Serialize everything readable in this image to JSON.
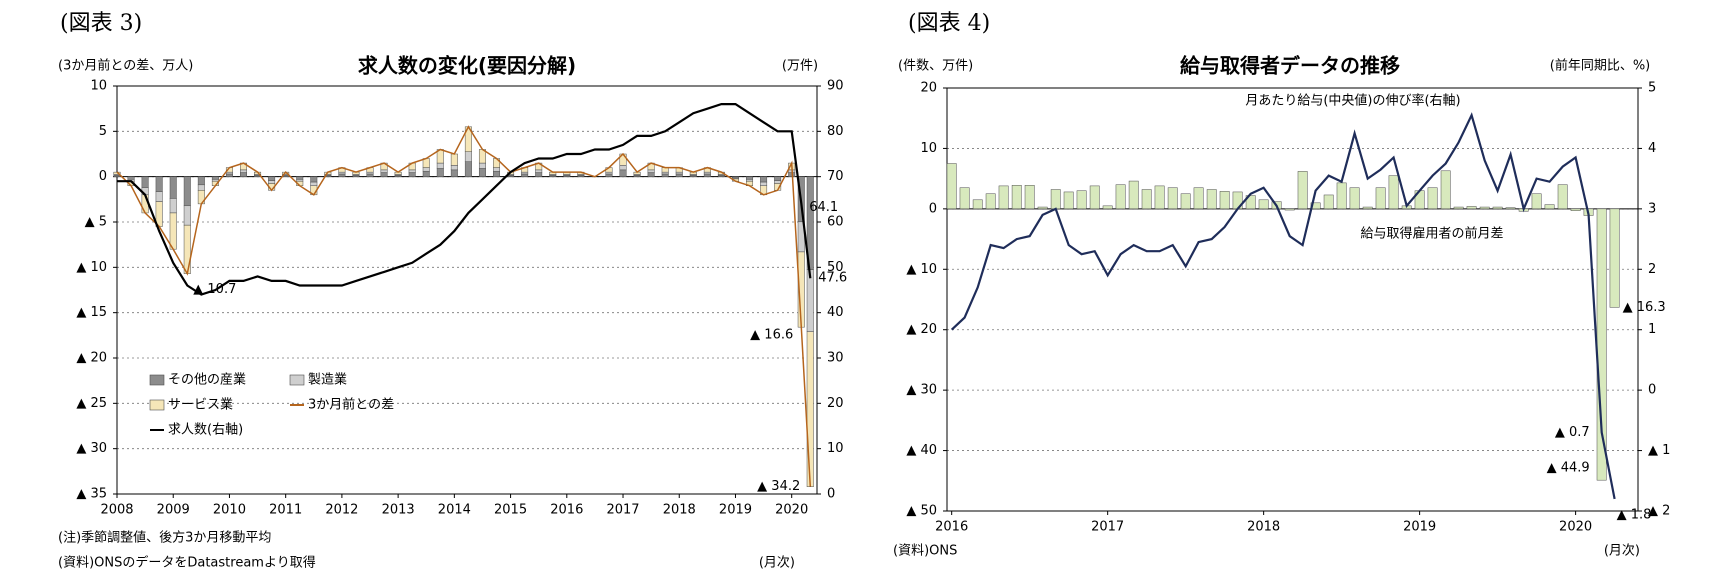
{
  "chart_data": [
    {
      "type": "combo",
      "figure_label": "(図表 3)",
      "title": "求人数の変化(要因分解)",
      "y_label": "(3か月前との差、万人)",
      "y2_label": "(万件)",
      "x_unit": "(月次)",
      "notes": [
        "(注)季節調整値、後方3か月移動平均",
        "(資料)ONSのデータをDatastreamより取得"
      ],
      "stacked": true,
      "grid": true,
      "legend": "lower left",
      "x": [
        2008,
        2008.25,
        2008.5,
        2008.75,
        2009,
        2009.25,
        2009.5,
        2009.75,
        2010,
        2010.25,
        2010.5,
        2010.75,
        2011,
        2011.25,
        2011.5,
        2011.75,
        2012,
        2012.25,
        2012.5,
        2012.75,
        2013,
        2013.25,
        2013.5,
        2013.75,
        2014,
        2014.25,
        2014.5,
        2014.75,
        2015,
        2015.25,
        2015.5,
        2015.75,
        2016,
        2016.25,
        2016.5,
        2016.75,
        2017,
        2017.25,
        2017.5,
        2017.75,
        2018,
        2018.25,
        2018.5,
        2018.75,
        2019,
        2019.25,
        2019.5,
        2019.75,
        2020,
        2020.17,
        2020.33
      ],
      "xlim": [
        2008,
        2020.45
      ],
      "xticks": [
        2008,
        2009,
        2010,
        2011,
        2012,
        2013,
        2014,
        2015,
        2016,
        2017,
        2018,
        2019,
        2020
      ],
      "ylim": [
        -35,
        10
      ],
      "yticks": [
        10,
        5,
        0,
        {
          "value": -5,
          "label": "▲ 5"
        },
        {
          "value": -10,
          "label": "▲ 10"
        },
        {
          "value": -15,
          "label": "▲ 15"
        },
        {
          "value": -20,
          "label": "▲ 20"
        },
        {
          "value": -25,
          "label": "▲ 25"
        },
        {
          "value": -30,
          "label": "▲ 30"
        },
        {
          "value": -35,
          "label": "▲ 35"
        }
      ],
      "y2lim": [
        0,
        90
      ],
      "y2ticks": [
        0,
        10,
        20,
        30,
        40,
        50,
        60,
        70,
        80,
        90
      ],
      "series": [
        {
          "name": "その他の産業",
          "type": "bar",
          "color": "#8c8c8c",
          "values": [
            0.15,
            -0.3,
            -1.2,
            -1.65,
            -2.4,
            -3.21,
            -0.9,
            -0.3,
            0.3,
            0.45,
            0.15,
            -0.45,
            0.15,
            -0.3,
            -0.6,
            0.15,
            0.3,
            0.15,
            0.3,
            0.45,
            0.15,
            0.45,
            0.6,
            0.9,
            0.75,
            1.65,
            0.9,
            0.6,
            0.15,
            0.3,
            0.45,
            0.15,
            0.15,
            0.15,
            0,
            0.3,
            0.75,
            0.15,
            0.45,
            0.3,
            0.3,
            0.15,
            0.3,
            0.15,
            -0.15,
            -0.3,
            -0.6,
            -0.45,
            0.45,
            -4.98,
            -10.26
          ]
        },
        {
          "name": "製造業",
          "type": "bar",
          "color": "#cfcfcf",
          "values": [
            0.1,
            -0.2,
            -0.8,
            -1.1,
            -1.6,
            -2.14,
            -0.6,
            -0.2,
            0.2,
            0.3,
            0.1,
            -0.3,
            0.1,
            -0.2,
            -0.4,
            0.1,
            0.2,
            0.1,
            0.2,
            0.3,
            0.1,
            0.3,
            0.4,
            0.6,
            0.5,
            1.1,
            0.6,
            0.4,
            0.1,
            0.2,
            0.3,
            0.1,
            0.1,
            0.1,
            0,
            0.2,
            0.5,
            0.1,
            0.3,
            0.2,
            0.2,
            0.1,
            0.2,
            0.1,
            -0.1,
            -0.2,
            -0.4,
            -0.3,
            0.3,
            -3.32,
            -6.84
          ]
        },
        {
          "name": "サービス業",
          "type": "bar",
          "color": "#f5e6b8",
          "values": [
            0.25,
            -0.5,
            -2,
            -2.75,
            -4,
            -5.35,
            -1.5,
            -0.5,
            0.5,
            0.75,
            0.25,
            -0.75,
            0.25,
            -0.5,
            -1,
            0.25,
            0.5,
            0.25,
            0.5,
            0.75,
            0.25,
            0.75,
            1,
            1.5,
            1.25,
            2.75,
            1.5,
            1,
            0.25,
            0.5,
            0.75,
            0.25,
            0.25,
            0.25,
            0,
            0.5,
            1.25,
            0.25,
            0.75,
            0.5,
            0.5,
            0.25,
            0.5,
            0.25,
            -0.25,
            -0.5,
            -1,
            -0.75,
            0.75,
            -8.3,
            -17.1
          ]
        },
        {
          "name": "3か月前との差",
          "type": "line",
          "color": "#b5651d",
          "values": [
            0.5,
            -1,
            -4,
            -5.5,
            -8,
            -10.7,
            -3,
            -1,
            1,
            1.5,
            0.5,
            -1.5,
            0.5,
            -1,
            -2,
            0.5,
            1,
            0.5,
            1,
            1.5,
            0.5,
            1.5,
            2,
            3,
            2.5,
            5.5,
            3,
            2,
            0.5,
            1,
            1.5,
            0.5,
            0.5,
            0.5,
            0,
            1,
            2.5,
            0.5,
            1.5,
            1,
            1,
            0.5,
            1,
            0.5,
            -0.5,
            -1,
            -2,
            -1.5,
            1.5,
            -16.6,
            -34.2
          ],
          "value_labels": [
            null,
            null,
            null,
            null,
            null,
            "▲ 10.7",
            null,
            null,
            null,
            null,
            null,
            null,
            null,
            null,
            null,
            null,
            null,
            null,
            null,
            null,
            null,
            null,
            null,
            null,
            null,
            null,
            null,
            null,
            null,
            null,
            null,
            null,
            null,
            null,
            null,
            null,
            null,
            null,
            null,
            null,
            null,
            null,
            null,
            null,
            null,
            null,
            null,
            null,
            null,
            "▲ 16.6",
            "▲ 34.2"
          ]
        },
        {
          "name": "求人数(右軸)",
          "type": "line",
          "axis": "y2",
          "color": "#000000",
          "values": [
            69,
            69,
            66,
            58,
            51,
            46,
            44,
            45,
            47,
            47,
            48,
            47,
            47,
            46,
            46,
            46,
            46,
            47,
            48,
            49,
            50,
            51,
            53,
            55,
            58,
            62,
            65,
            68,
            71,
            73,
            74,
            74,
            75,
            75,
            76,
            76,
            77,
            79,
            79,
            80,
            82,
            84,
            85,
            86,
            86,
            84,
            82,
            80,
            80,
            64.1,
            47.6
          ],
          "value_labels": [
            null,
            null,
            null,
            null,
            null,
            null,
            null,
            null,
            null,
            null,
            null,
            null,
            null,
            null,
            null,
            null,
            null,
            null,
            null,
            null,
            null,
            null,
            null,
            null,
            null,
            null,
            null,
            null,
            null,
            null,
            null,
            null,
            null,
            null,
            null,
            null,
            null,
            null,
            null,
            null,
            null,
            null,
            null,
            null,
            null,
            null,
            null,
            null,
            null,
            "64.1",
            "47.6"
          ]
        }
      ]
    },
    {
      "type": "combo",
      "figure_label": "(図表 4)",
      "title": "給与取得者データの推移",
      "y_label": "(件数、万件)",
      "y2_label": "(前年同期比、%)",
      "x_unit": "(月次)",
      "notes": [
        "(資料)ONS"
      ],
      "stacked": false,
      "grid": true,
      "x": [
        2016,
        2016.083,
        2016.167,
        2016.25,
        2016.333,
        2016.417,
        2016.5,
        2016.583,
        2016.667,
        2016.75,
        2016.833,
        2016.917,
        2017,
        2017.083,
        2017.167,
        2017.25,
        2017.333,
        2017.417,
        2017.5,
        2017.583,
        2017.667,
        2017.75,
        2017.833,
        2017.917,
        2018,
        2018.083,
        2018.167,
        2018.25,
        2018.333,
        2018.417,
        2018.5,
        2018.583,
        2018.667,
        2018.75,
        2018.833,
        2018.917,
        2019,
        2019.083,
        2019.167,
        2019.25,
        2019.333,
        2019.417,
        2019.5,
        2019.583,
        2019.667,
        2019.75,
        2019.833,
        2019.917,
        2020,
        2020.083,
        2020.167,
        2020.25
      ],
      "xlim": [
        2015.97,
        2020.4
      ],
      "xticks": [
        2016,
        2017,
        2018,
        2019,
        2020
      ],
      "ylim": [
        -50,
        20
      ],
      "yticks": [
        20,
        10,
        0,
        {
          "value": -10,
          "label": "▲ 10"
        },
        {
          "value": -20,
          "label": "▲ 20"
        },
        {
          "value": -30,
          "label": "▲ 30"
        },
        {
          "value": -40,
          "label": "▲ 40"
        },
        {
          "value": -50,
          "label": "▲ 50"
        }
      ],
      "y2lim": [
        -2,
        5
      ],
      "y2ticks": [
        5,
        4,
        3,
        2,
        1,
        0,
        {
          "value": -1,
          "label": "▲ 1"
        },
        {
          "value": -2,
          "label": "▲ 2"
        }
      ],
      "series": [
        {
          "name": "給与取得雇用者の前月差",
          "type": "bar",
          "color": "#d8e9bd",
          "values": [
            7.5,
            3.5,
            1.5,
            2.5,
            3.8,
            3.9,
            3.9,
            0.3,
            3.2,
            2.8,
            3.0,
            3.8,
            0.5,
            4.0,
            4.6,
            3.2,
            3.8,
            3.5,
            2.5,
            3.5,
            3.2,
            2.9,
            2.8,
            2.2,
            1.5,
            1.2,
            -0.2,
            6.2,
            1.0,
            2.3,
            4.3,
            3.5,
            0.3,
            3.5,
            5.5,
            0.5,
            3.0,
            3.5,
            6.3,
            0.3,
            0.4,
            0.3,
            0.3,
            0.2,
            -0.4,
            2.5,
            0.7,
            4.0,
            -0.3,
            -1.1,
            -44.9,
            -16.3
          ],
          "value_labels": [
            null,
            null,
            null,
            null,
            null,
            null,
            null,
            null,
            null,
            null,
            null,
            null,
            null,
            null,
            null,
            null,
            null,
            null,
            null,
            null,
            null,
            null,
            null,
            null,
            null,
            null,
            null,
            null,
            null,
            null,
            null,
            null,
            null,
            null,
            null,
            null,
            null,
            null,
            null,
            null,
            null,
            null,
            null,
            null,
            null,
            null,
            null,
            null,
            null,
            null,
            "▲ 44.9",
            "▲ 16.3"
          ]
        },
        {
          "name": "月あたり給与(中央値)の伸び率(右軸)",
          "type": "line",
          "axis": "y2",
          "color": "#1f2d5a",
          "values": [
            1.0,
            1.2,
            1.7,
            2.4,
            2.35,
            2.5,
            2.55,
            2.9,
            3.0,
            2.4,
            2.25,
            2.3,
            1.9,
            2.25,
            2.4,
            2.3,
            2.3,
            2.4,
            2.05,
            2.45,
            2.5,
            2.7,
            3.0,
            3.25,
            3.35,
            3.05,
            2.55,
            2.4,
            3.3,
            3.55,
            3.45,
            4.25,
            3.5,
            3.65,
            3.85,
            3.05,
            3.3,
            3.55,
            3.75,
            4.1,
            4.55,
            3.8,
            3.3,
            3.9,
            3.0,
            3.5,
            3.45,
            3.7,
            3.85,
            2.9,
            -0.7,
            -1.8
          ],
          "value_labels": [
            null,
            null,
            null,
            null,
            null,
            null,
            null,
            null,
            null,
            null,
            null,
            null,
            null,
            null,
            null,
            null,
            null,
            null,
            null,
            null,
            null,
            null,
            null,
            null,
            null,
            null,
            null,
            null,
            null,
            null,
            null,
            null,
            null,
            null,
            null,
            null,
            null,
            null,
            null,
            null,
            null,
            null,
            null,
            null,
            null,
            null,
            null,
            null,
            null,
            null,
            "▲ 0.7",
            "▲ 1.8"
          ]
        }
      ]
    }
  ]
}
